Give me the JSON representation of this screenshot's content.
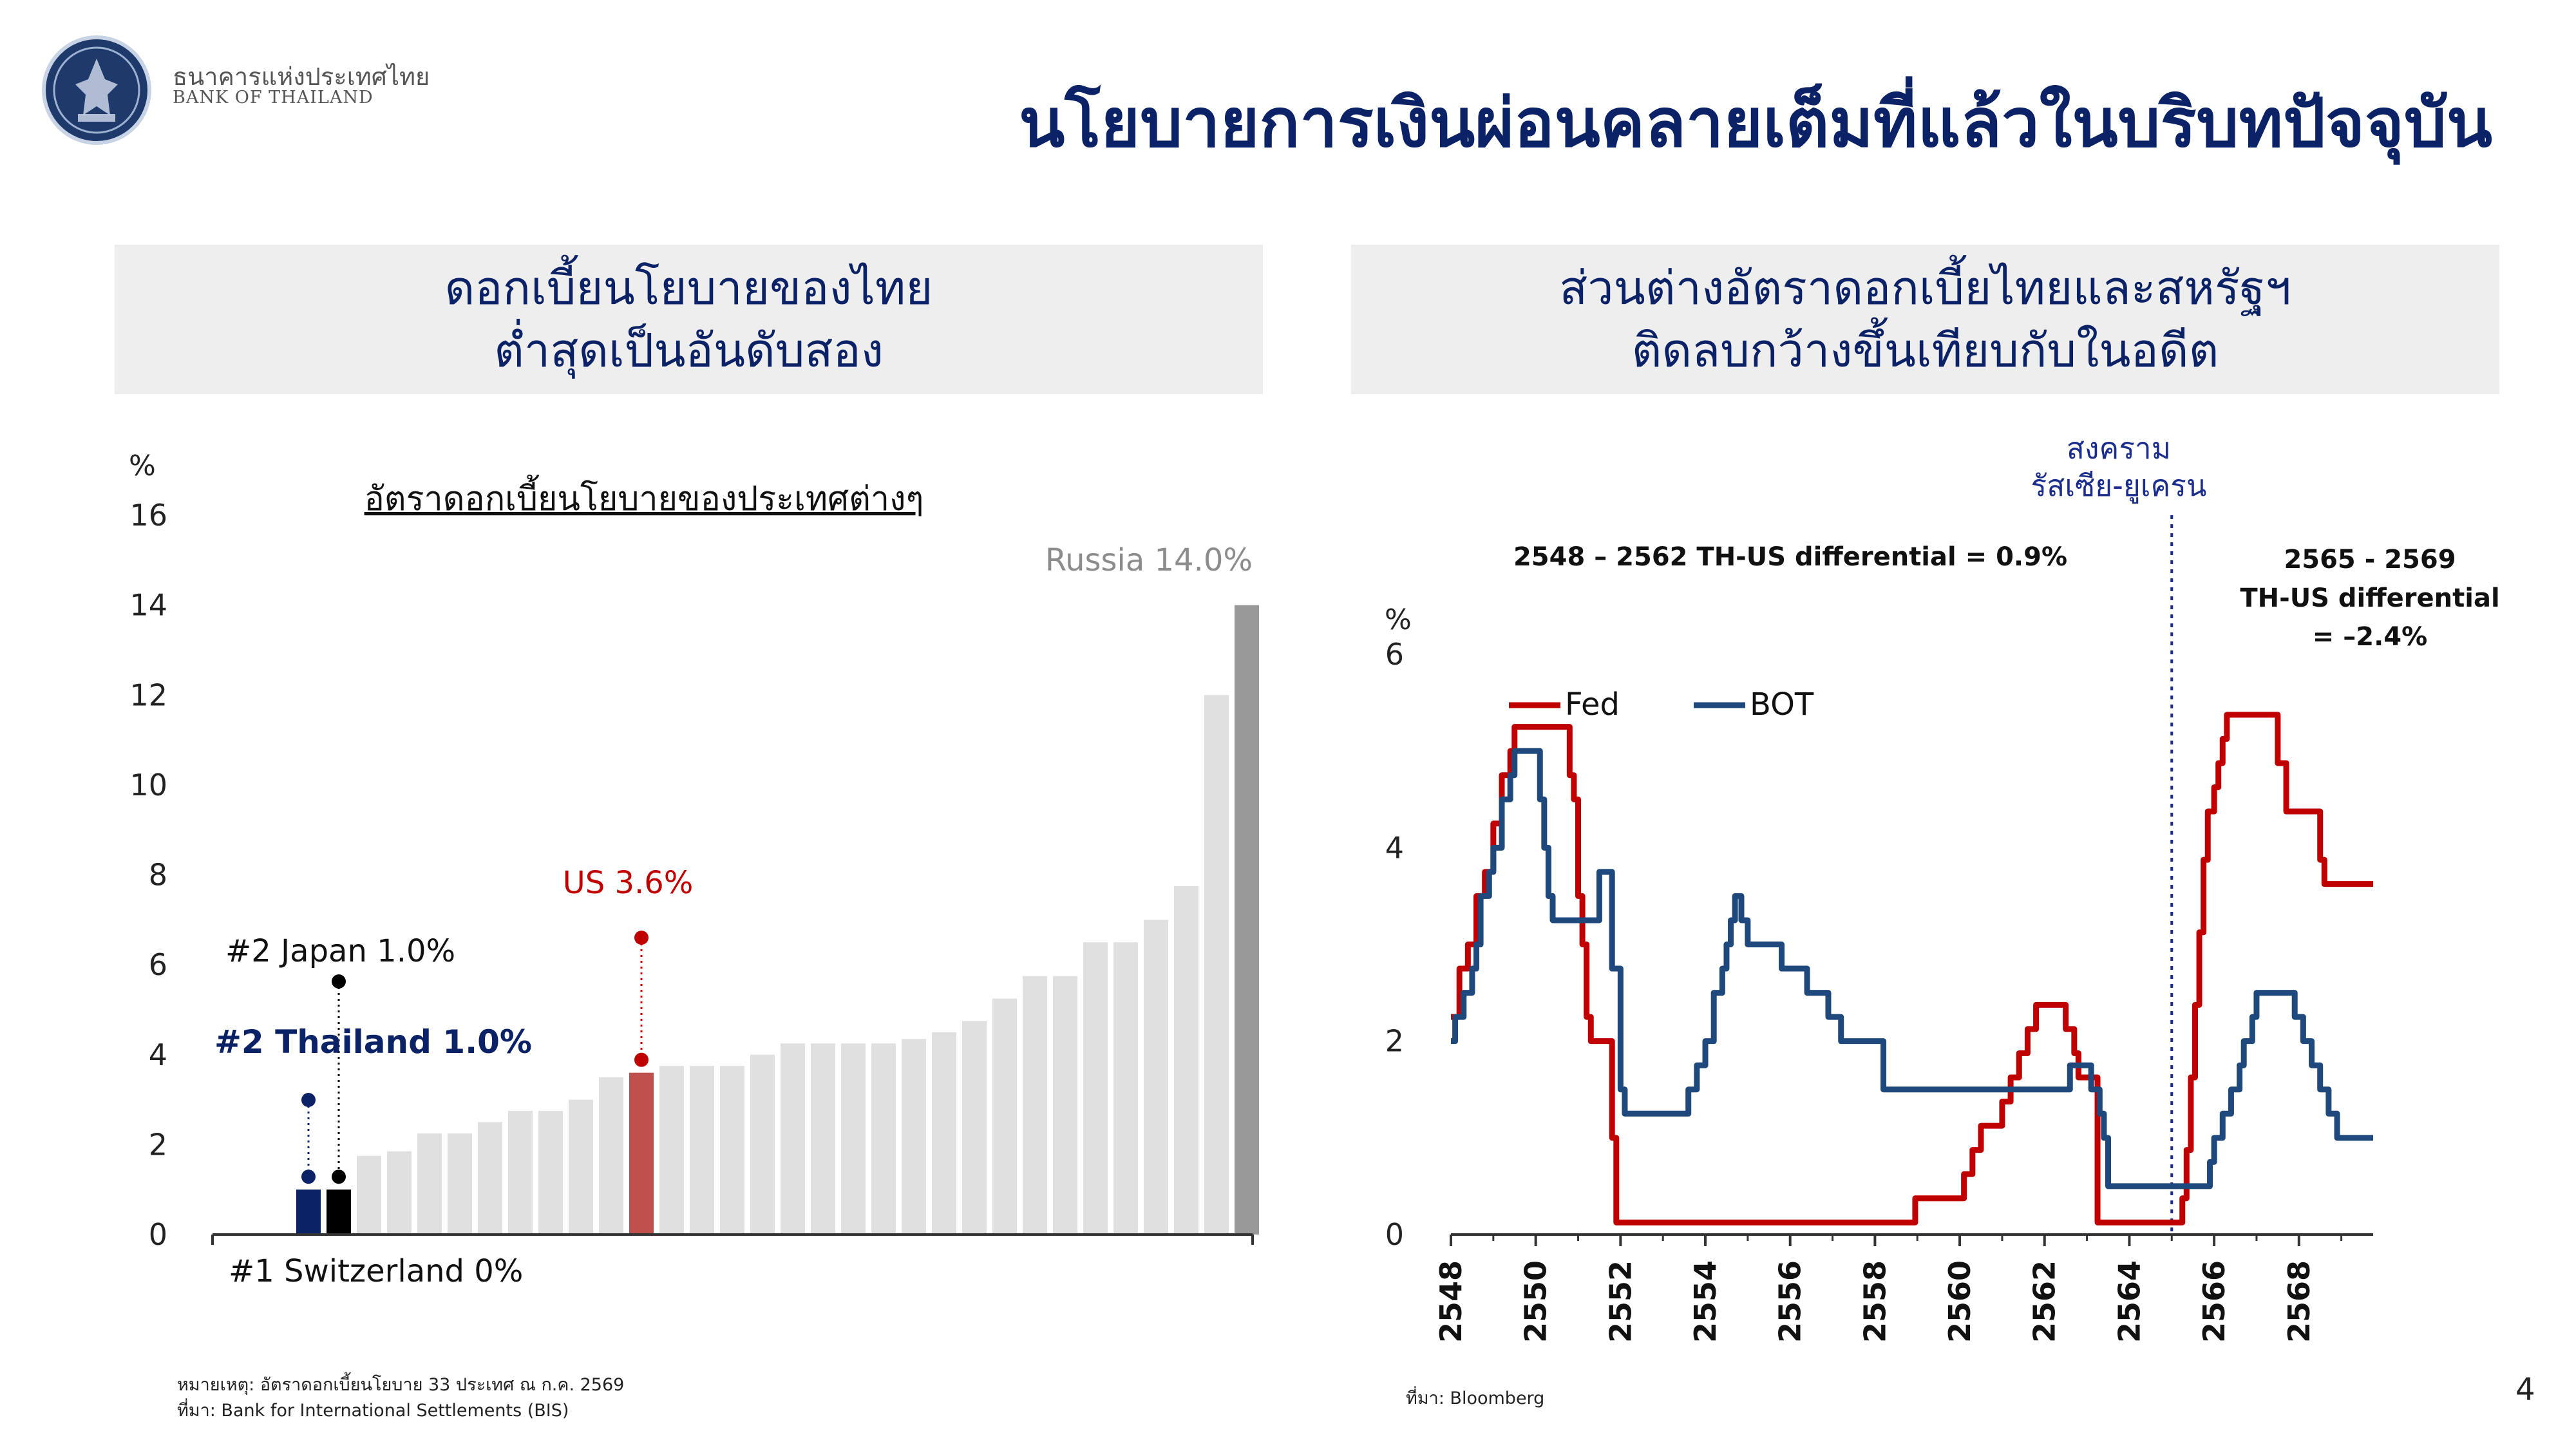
{
  "header": {
    "logo_icon": "bank-of-thailand-seal-icon",
    "brand_th": "ธนาคารแห่งประเทศไทย",
    "brand_en": "BANK OF THAILAND",
    "title": "นโยบายการเงินผ่อนคลายเต็มที่แล้วในบริบทปัจจุบัน"
  },
  "left_panel": {
    "heading_line1": "ดอกเบี้ยนโยบายของไทย",
    "heading_line2": "ต่ำสุดเป็นอันดับสอง",
    "chart_subtitle": "อัตราดอกเบี้ยนโยบายของประเทศต่างๆ",
    "y_unit": "%",
    "annotations": {
      "russia": "Russia 14.0%",
      "us": "US 3.6%",
      "japan": "#2 Japan 1.0%",
      "thailand": "#2 Thailand 1.0%",
      "switzerland": "#1 Switzerland 0%"
    },
    "note_line1": "หมายเหตุ: อัตราดอกเบี้ยนโยบาย 33 ประเทศ ณ ก.ค. 2569",
    "note_line2": "ที่มา: Bank for International Settlements (BIS)"
  },
  "right_panel": {
    "heading_line1": "ส่วนต่างอัตราดอกเบี้ยไทยและสหรัฐฯ",
    "heading_line2": "ติดลบกว้างขึ้นเทียบกับในอดีต",
    "war_label_line1": "สงคราม",
    "war_label_line2": "รัสเซีย-ยูเครน",
    "diff_past": "2548 – 2562 TH-US differential = 0.9%",
    "diff_now_line1": "2565 - 2569",
    "diff_now_line2": "TH-US differential",
    "diff_now_line3": "= –2.4%",
    "y_unit": "%",
    "source": "ที่มา: Bloomberg"
  },
  "page_number": "4",
  "colors": {
    "navy": "#0b2266",
    "fed_red": "#c00000",
    "bot_blue": "#1f497d",
    "bar_gray": "#e0e0e0",
    "russia_gray": "#999999",
    "us_bar": "#c0504d",
    "thailand_bar": "#0b2266",
    "japan_bar": "#000000"
  },
  "chart_data": [
    {
      "type": "bar",
      "title": "อัตราดอกเบี้ยนโยบายของประเทศต่างๆ",
      "ylabel": "%",
      "ylim": [
        0,
        16
      ],
      "yticks": [
        0,
        2,
        4,
        6,
        8,
        10,
        12,
        14,
        16
      ],
      "values": [
        0,
        1.0,
        1.0,
        1.75,
        1.85,
        2.25,
        2.25,
        2.5,
        2.75,
        2.75,
        3.0,
        3.5,
        3.6,
        3.75,
        3.75,
        3.75,
        4.0,
        4.25,
        4.25,
        4.25,
        4.25,
        4.35,
        4.5,
        4.75,
        5.25,
        5.75,
        5.75,
        6.5,
        6.5,
        7.0,
        7.75,
        12.0,
        14.0
      ],
      "highlighted": {
        "Switzerland": 0,
        "Thailand": 1,
        "Japan": 2,
        "US": 12,
        "Russia": 32
      }
    },
    {
      "type": "line",
      "ylabel": "%",
      "ylim": [
        0,
        6
      ],
      "yticks": [
        0,
        2,
        4,
        6
      ],
      "xlim": [
        2548,
        2569.75
      ],
      "xticks": [
        2548,
        2550,
        2552,
        2554,
        2556,
        2558,
        2560,
        2562,
        2564,
        2566,
        2568
      ],
      "event_line_x": 2565.0,
      "series": [
        {
          "name": "Fed",
          "points": [
            [
              2548.0,
              2.25
            ],
            [
              2548.2,
              2.75
            ],
            [
              2548.4,
              3.0
            ],
            [
              2548.6,
              3.5
            ],
            [
              2548.8,
              3.75
            ],
            [
              2549.0,
              4.25
            ],
            [
              2549.2,
              4.75
            ],
            [
              2549.4,
              5.0
            ],
            [
              2549.5,
              5.25
            ],
            [
              2550.6,
              5.25
            ],
            [
              2550.8,
              4.75
            ],
            [
              2550.9,
              4.5
            ],
            [
              2551.0,
              3.5
            ],
            [
              2551.1,
              3.0
            ],
            [
              2551.2,
              2.25
            ],
            [
              2551.3,
              2.0
            ],
            [
              2551.7,
              2.0
            ],
            [
              2551.8,
              1.0
            ],
            [
              2551.9,
              0.125
            ],
            [
              2558.9,
              0.125
            ],
            [
              2558.95,
              0.375
            ],
            [
              2559.9,
              0.375
            ],
            [
              2560.1,
              0.625
            ],
            [
              2560.3,
              0.875
            ],
            [
              2560.5,
              1.125
            ],
            [
              2561.0,
              1.375
            ],
            [
              2561.2,
              1.625
            ],
            [
              2561.4,
              1.875
            ],
            [
              2561.6,
              2.125
            ],
            [
              2561.8,
              2.375
            ],
            [
              2562.4,
              2.375
            ],
            [
              2562.5,
              2.125
            ],
            [
              2562.7,
              1.875
            ],
            [
              2562.8,
              1.625
            ],
            [
              2563.2,
              1.625
            ],
            [
              2563.25,
              0.125
            ],
            [
              2565.1,
              0.125
            ],
            [
              2565.25,
              0.375
            ],
            [
              2565.35,
              0.875
            ],
            [
              2565.45,
              1.625
            ],
            [
              2565.55,
              2.375
            ],
            [
              2565.65,
              3.125
            ],
            [
              2565.75,
              3.875
            ],
            [
              2565.85,
              4.375
            ],
            [
              2566.0,
              4.625
            ],
            [
              2566.1,
              4.875
            ],
            [
              2566.2,
              5.125
            ],
            [
              2566.3,
              5.375
            ],
            [
              2567.4,
              5.375
            ],
            [
              2567.5,
              4.875
            ],
            [
              2567.7,
              4.375
            ],
            [
              2568.4,
              4.375
            ],
            [
              2568.5,
              3.875
            ],
            [
              2568.6,
              3.625
            ],
            [
              2569.75,
              3.625
            ]
          ]
        },
        {
          "name": "BOT",
          "points": [
            [
              2548.0,
              2.0
            ],
            [
              2548.1,
              2.25
            ],
            [
              2548.3,
              2.5
            ],
            [
              2548.5,
              2.75
            ],
            [
              2548.6,
              3.0
            ],
            [
              2548.7,
              3.5
            ],
            [
              2548.9,
              3.75
            ],
            [
              2549.0,
              4.0
            ],
            [
              2549.2,
              4.5
            ],
            [
              2549.4,
              4.75
            ],
            [
              2549.5,
              5.0
            ],
            [
              2550.0,
              5.0
            ],
            [
              2550.1,
              4.5
            ],
            [
              2550.2,
              4.0
            ],
            [
              2550.3,
              3.5
            ],
            [
              2550.4,
              3.25
            ],
            [
              2551.3,
              3.25
            ],
            [
              2551.5,
              3.75
            ],
            [
              2551.7,
              3.75
            ],
            [
              2551.8,
              2.75
            ],
            [
              2552.0,
              1.5
            ],
            [
              2552.1,
              1.25
            ],
            [
              2553.5,
              1.25
            ],
            [
              2553.6,
              1.5
            ],
            [
              2553.8,
              1.75
            ],
            [
              2554.0,
              2.0
            ],
            [
              2554.2,
              2.5
            ],
            [
              2554.4,
              2.75
            ],
            [
              2554.5,
              3.0
            ],
            [
              2554.6,
              3.25
            ],
            [
              2554.7,
              3.5
            ],
            [
              2554.85,
              3.25
            ],
            [
              2555.0,
              3.0
            ],
            [
              2555.7,
              3.0
            ],
            [
              2555.8,
              2.75
            ],
            [
              2556.3,
              2.75
            ],
            [
              2556.4,
              2.5
            ],
            [
              2556.8,
              2.5
            ],
            [
              2556.9,
              2.25
            ],
            [
              2557.1,
              2.25
            ],
            [
              2557.2,
              2.0
            ],
            [
              2558.1,
              2.0
            ],
            [
              2558.2,
              1.5
            ],
            [
              2562.5,
              1.5
            ],
            [
              2562.6,
              1.75
            ],
            [
              2563.0,
              1.75
            ],
            [
              2563.1,
              1.5
            ],
            [
              2563.3,
              1.25
            ],
            [
              2563.4,
              1.0
            ],
            [
              2563.5,
              0.5
            ],
            [
              2565.8,
              0.5
            ],
            [
              2565.9,
              0.75
            ],
            [
              2566.0,
              1.0
            ],
            [
              2566.2,
              1.25
            ],
            [
              2566.4,
              1.5
            ],
            [
              2566.6,
              1.75
            ],
            [
              2566.7,
              2.0
            ],
            [
              2566.9,
              2.25
            ],
            [
              2567.0,
              2.5
            ],
            [
              2567.8,
              2.5
            ],
            [
              2567.9,
              2.25
            ],
            [
              2568.1,
              2.0
            ],
            [
              2568.3,
              1.75
            ],
            [
              2568.5,
              1.5
            ],
            [
              2568.7,
              1.25
            ],
            [
              2568.9,
              1.0
            ],
            [
              2569.75,
              1.0
            ]
          ]
        }
      ]
    }
  ]
}
